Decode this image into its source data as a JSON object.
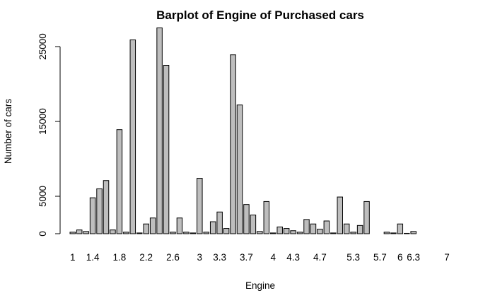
{
  "chart_data": {
    "type": "bar",
    "title": "Barplot of Engine of Purchased cars",
    "xlabel": "Engine",
    "ylabel": "Number of cars",
    "ylim": [
      0,
      28000
    ],
    "y_ticks": [
      0,
      5000,
      15000,
      25000
    ],
    "x_tick_labels": [
      "1",
      "1.4",
      "1.8",
      "2.2",
      "2.6",
      "3",
      "3.3",
      "3.7",
      "4",
      "4.3",
      "4.7",
      "5.3",
      "5.7",
      "6",
      "6.3",
      "7"
    ],
    "x_tick_bar_index": [
      0,
      3,
      7,
      11,
      15,
      19,
      22,
      26,
      30,
      33,
      37,
      42,
      46,
      49,
      51,
      56
    ],
    "values": [
      200,
      500,
      300,
      4800,
      6000,
      7100,
      500,
      13900,
      200,
      25900,
      100,
      1300,
      2100,
      27500,
      22500,
      200,
      2100,
      200,
      100,
      7400,
      200,
      1600,
      2900,
      700,
      23900,
      17200,
      3900,
      2500,
      300,
      4300,
      100,
      900,
      700,
      400,
      200,
      1900,
      1300,
      600,
      1700,
      100,
      4900,
      1300,
      200,
      1100,
      4300,
      0,
      0,
      200,
      100,
      1300,
      50,
      300,
      0,
      0,
      0,
      0,
      0
    ],
    "bar_color": "#bebebe",
    "grid": false
  }
}
